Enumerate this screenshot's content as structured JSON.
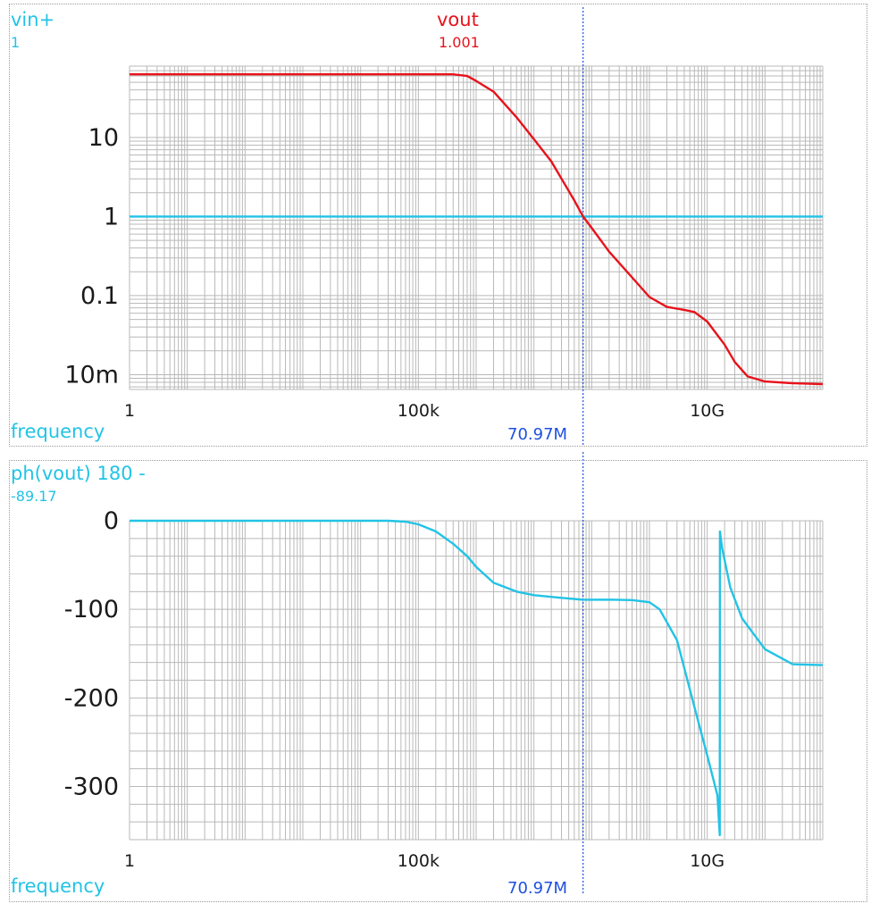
{
  "colors": {
    "vin": "#22c3e6",
    "vout": "#e8121b",
    "phase": "#22c3e6",
    "cursor": "#1e4fe0",
    "grid": "#b9b9b9",
    "tick_text": "#1a1a1a"
  },
  "top_panel": {
    "trace1": {
      "name": "vin+",
      "value": "1"
    },
    "trace2": {
      "name": "vout",
      "value": "1.001"
    },
    "xlabel": "frequency",
    "cursor_readout": "70.97M"
  },
  "bottom_panel": {
    "trace": {
      "name": "ph(vout) 180 -",
      "value": "-89.17"
    },
    "xlabel": "frequency",
    "cursor_readout": "70.97M"
  },
  "chart_data": [
    {
      "type": "line",
      "xscale": "log",
      "yscale": "log",
      "xlim": [
        1,
        1000000000000.0
      ],
      "ylim": [
        0.0065,
        80
      ],
      "xticks": [
        {
          "v": 1,
          "label": "1"
        },
        {
          "v": 100000,
          "label": "100k"
        },
        {
          "v": 10000000000,
          "label": "10G"
        }
      ],
      "yticks": [
        {
          "v": 10,
          "label": "10"
        },
        {
          "v": 1,
          "label": "1"
        },
        {
          "v": 0.1,
          "label": "0.1"
        },
        {
          "v": 0.01,
          "label": "10m"
        }
      ],
      "grid": true,
      "xlabel": "frequency",
      "cursor_x": 70970000,
      "series": [
        {
          "name": "vin+",
          "x": [
            1,
            1000000000000.0
          ],
          "y": [
            1,
            1
          ]
        },
        {
          "name": "vout",
          "x": [
            1,
            100000,
            200000,
            400000,
            700000,
            1000000,
            2000000,
            5000000,
            10000000,
            20000000,
            50000000,
            70970000,
            100000000,
            200000000,
            500000000,
            1000000000,
            2000000000,
            4000000000,
            6000000000,
            10000000000,
            20000000000,
            30000000000,
            50000000000,
            100000000000,
            300000000000,
            1000000000000
          ],
          "y": [
            63,
            63,
            63,
            63,
            60,
            52,
            38,
            18,
            9.5,
            5,
            1.6,
            1.0,
            0.72,
            0.36,
            0.17,
            0.096,
            0.072,
            0.066,
            0.062,
            0.047,
            0.024,
            0.0145,
            0.0095,
            0.0082,
            0.0078,
            0.0076
          ]
        }
      ]
    },
    {
      "type": "line",
      "xscale": "log",
      "yscale": "linear",
      "xlim": [
        1,
        1000000000000.0
      ],
      "ylim": [
        -360,
        0
      ],
      "xticks": [
        {
          "v": 1,
          "label": "1"
        },
        {
          "v": 100000,
          "label": "100k"
        },
        {
          "v": 10000000000,
          "label": "10G"
        }
      ],
      "yticks": [
        {
          "v": 0,
          "label": "0"
        },
        {
          "v": -100,
          "label": "-100"
        },
        {
          "v": -200,
          "label": "-200"
        },
        {
          "v": -300,
          "label": "-300"
        }
      ],
      "grid": true,
      "xlabel": "frequency",
      "cursor_x": 70970000,
      "series": [
        {
          "name": "ph(vout) 180 -",
          "x": [
            1,
            10000,
            30000,
            60000,
            100000,
            200000,
            400000,
            700000,
            1000000,
            2000000,
            5000000,
            10000000,
            30000000,
            70970000,
            200000000,
            500000000,
            1000000000,
            1500000000,
            3000000000,
            6000000000,
            10000000000,
            15000000000,
            16500000000,
            16600000000,
            18000000000,
            25000000000,
            40000000000,
            100000000000,
            300000000000,
            1000000000000
          ],
          "y": [
            0,
            0,
            0,
            -1,
            -4,
            -12,
            -26,
            -40,
            -52,
            -70,
            -80,
            -84,
            -87,
            -89.17,
            -89,
            -89.5,
            -92,
            -100,
            -135,
            -210,
            -265,
            -310,
            -355,
            -12,
            -30,
            -75,
            -110,
            -145,
            -162,
            -163
          ]
        }
      ]
    }
  ]
}
